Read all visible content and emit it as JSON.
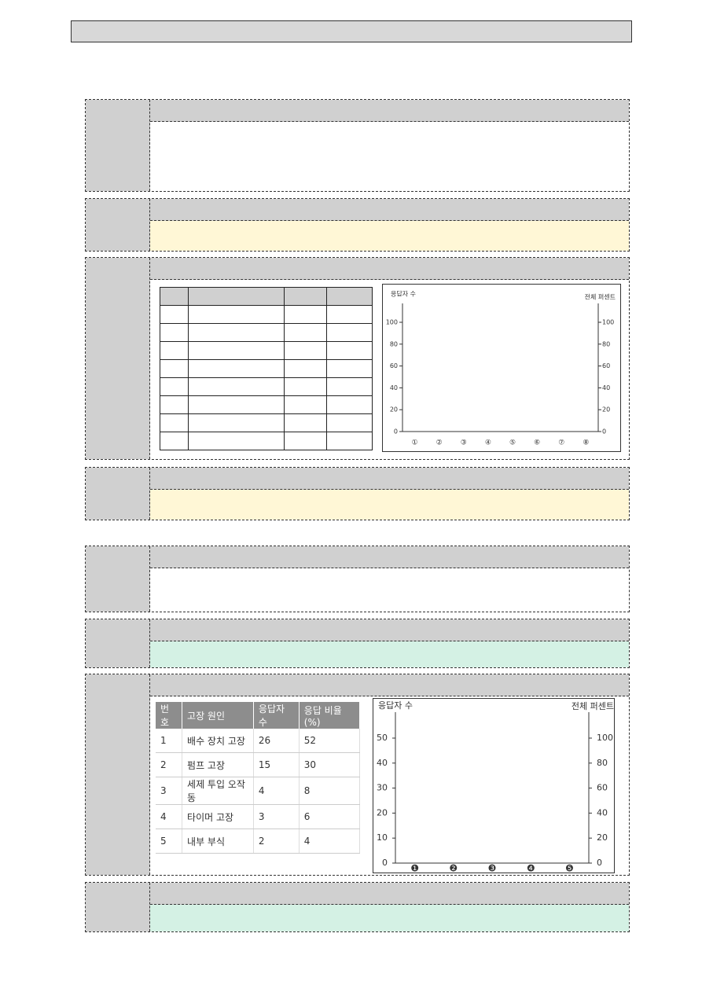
{
  "chart_data": [
    {
      "type": "axes",
      "y_label": "응답자 수",
      "y2_label": "전체 퍼센트",
      "categories": [
        "①",
        "②",
        "③",
        "④",
        "⑤",
        "⑥",
        "⑦",
        "⑧"
      ],
      "ylim": [
        0,
        100
      ],
      "yticks": [
        0,
        20,
        40,
        60,
        80,
        100
      ],
      "y2lim": [
        0,
        100
      ],
      "y2ticks": [
        0,
        20,
        40,
        60,
        80,
        100
      ]
    },
    {
      "type": "axes",
      "y_label": "응답자 수",
      "y2_label": "전체 퍼센트",
      "categories": [
        "❶",
        "❷",
        "❸",
        "❹",
        "❺"
      ],
      "ylim": [
        0,
        50
      ],
      "yticks": [
        0,
        10,
        20,
        30,
        40,
        50
      ],
      "y2lim": [
        0,
        100
      ],
      "y2ticks": [
        0,
        20,
        40,
        60,
        80,
        100
      ]
    }
  ],
  "table": {
    "header": [
      "번호",
      "고장 원인",
      "응답자 수",
      "응답 비율(%)"
    ],
    "rows": [
      [
        1,
        "배수 장치 고장",
        26,
        52
      ],
      [
        2,
        "펌프 고장",
        15,
        30
      ],
      [
        3,
        "세제 투입 오작동",
        4,
        8
      ],
      [
        4,
        "타이머 고장",
        3,
        6
      ],
      [
        5,
        "내부 부식",
        2,
        4
      ]
    ]
  }
}
